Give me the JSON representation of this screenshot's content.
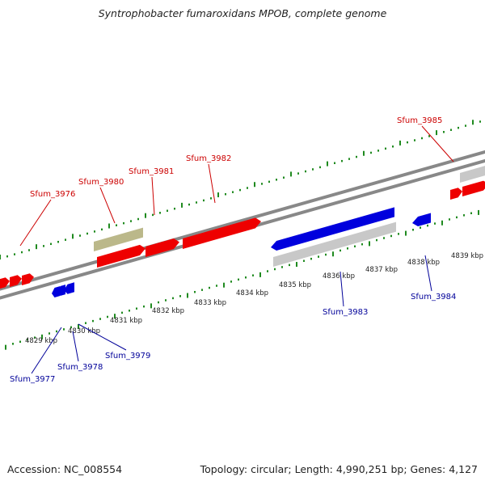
{
  "title": "Syntrophobacter fumaroxidans MPOB, complete genome",
  "footer": {
    "accession": "Accession: NC_008554",
    "summary": "Topology: circular; Length: 4,990,251 bp; Genes: 4,127"
  },
  "colors": {
    "forward_gene": "#ee0000",
    "reverse_gene": "#0000dd",
    "forward_label": "#cc0000",
    "reverse_label": "#000099",
    "rna_or_pseudo": "#bbb88a",
    "feature_gray": "#c8c8c8",
    "backbone": "#888888",
    "tick": "#1f8a1f"
  },
  "axis": {
    "unit": "kbp",
    "ticks": [
      "4829 kbp",
      "4830 kbp",
      "4831 kbp",
      "4832 kbp",
      "4833 kbp",
      "4834 kbp",
      "4835 kbp",
      "4836 kbp",
      "4837 kbp",
      "4838 kbp",
      "4839 kbp"
    ]
  },
  "forward_labels": [
    "Sfum_3976",
    "Sfum_3980",
    "Sfum_3981",
    "Sfum_3982",
    "Sfum_3985"
  ],
  "reverse_labels": [
    "Sfum_3977",
    "Sfum_3978",
    "Sfum_3979",
    "Sfum_3983",
    "Sfum_3984"
  ]
}
